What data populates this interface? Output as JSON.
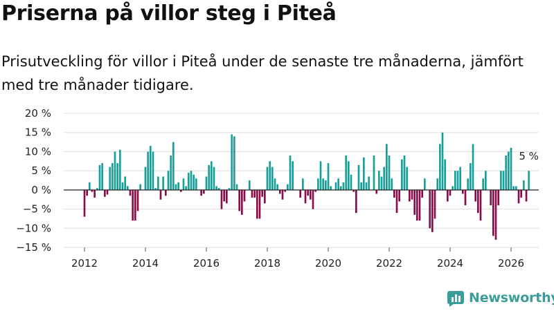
{
  "header": {
    "title": "Priserna på villor steg i Piteå",
    "subtitle": "Prisutveckling för villor i Piteå under de senaste tre månaderna, jämfört med tre månader tidigare."
  },
  "brand": {
    "name": "Newsworthy",
    "color": "#3a9d99"
  },
  "colors": {
    "positive": "#14a098",
    "negative": "#8c0a4a",
    "grid": "#dddddd",
    "zero": "#222222"
  },
  "chart_data": {
    "type": "bar",
    "title": "Priserna på villor steg i Piteå",
    "xlabel": "",
    "ylabel": "",
    "ylim": [
      -15,
      20
    ],
    "yticks": [
      -15,
      -10,
      -5,
      0,
      5,
      10,
      15,
      20
    ],
    "ytick_labels": [
      "−15 %",
      "−10 %",
      "−5 %",
      "0 %",
      "5 %",
      "10 %",
      "15 %",
      "20 %"
    ],
    "xticks": [
      "2012",
      "2014",
      "2016",
      "2018",
      "2020",
      "2022",
      "2024",
      "2026"
    ],
    "start": "2012-01",
    "frequency": "monthly",
    "unit": "%",
    "annotation": {
      "label": "5 %",
      "value": 5,
      "target": "last"
    },
    "values": [
      -7,
      -1.5,
      2,
      -0.5,
      -2,
      0.5,
      6.5,
      7,
      -1.8,
      -1.2,
      6,
      7,
      10,
      7,
      10.5,
      2,
      3.5,
      1,
      -1.5,
      -8,
      -8,
      -5.5,
      1.5,
      0,
      6,
      10,
      11.5,
      10,
      0.5,
      3.5,
      -2.5,
      3.5,
      -1.5,
      5,
      9,
      12.5,
      1.5,
      2,
      -0.5,
      3,
      1,
      4.5,
      5,
      4,
      3,
      0,
      -1.5,
      -1,
      3.5,
      6.5,
      7.5,
      6,
      1,
      0.5,
      -5,
      -3,
      -3.5,
      0.5,
      14.5,
      14,
      1.5,
      -5.5,
      -6.5,
      -3,
      0,
      2.5,
      -2,
      -2,
      -7.5,
      -7.5,
      -1.8,
      -3.5,
      6,
      7.5,
      6,
      3,
      1.5,
      -1,
      -2.5,
      -0.5,
      1.5,
      9,
      7.5,
      0,
      0,
      -2,
      3,
      -3.5,
      -1.5,
      -2.5,
      -5,
      -0.5,
      3,
      7.5,
      3,
      2.5,
      7,
      1,
      0,
      2,
      3,
      1,
      2,
      9,
      7.5,
      4,
      -0.5,
      -6,
      6.5,
      2,
      8.5,
      2,
      3.5,
      0,
      9,
      -1,
      5,
      3.5,
      6,
      12,
      9,
      3,
      -2,
      -6,
      -3,
      8,
      9,
      6,
      -3,
      -2.5,
      -6.5,
      -8,
      -8,
      -2,
      3,
      0,
      -10,
      -11,
      -7.5,
      3,
      12,
      15,
      8,
      -3,
      -1.5,
      1,
      5,
      5,
      6,
      -1,
      -4,
      3,
      7,
      12,
      -3,
      -6,
      -8,
      3,
      5,
      0,
      -4,
      -12,
      -13,
      -4,
      5,
      5,
      9,
      10,
      11,
      1,
      1,
      -3.5,
      -2,
      2.5,
      -3,
      5
    ]
  }
}
